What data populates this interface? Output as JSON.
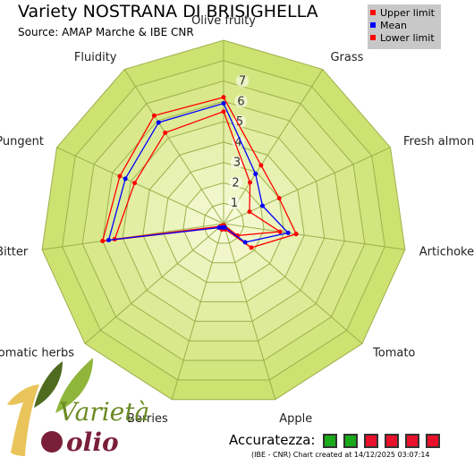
{
  "header": {
    "title": "Variety NOSTRANA DI BRISIGHELLA",
    "subtitle": "Source: AMAP Marche & IBE CNR"
  },
  "legend": {
    "items": [
      {
        "label": "Upper limit",
        "color": "#ff0000"
      },
      {
        "label": "Mean",
        "color": "#0000ff"
      },
      {
        "label": "Lower limit",
        "color": "#ff0000"
      }
    ]
  },
  "chart_data": {
    "type": "radar",
    "title": "Variety NOSTRANA DI BRISIGHELLA",
    "subtitle": "Source: AMAP Marche & IBE CNR",
    "axes": [
      "Olive fruity",
      "Grass",
      "Fresh almond",
      "Artichoke",
      "Tomato",
      "Apple",
      "Berries",
      "Aromatic herbs",
      "Bitter",
      "Pungent",
      "Fluidity"
    ],
    "scale": {
      "min": 0,
      "max": 9,
      "tick_labels": [
        "1",
        "2",
        "3",
        "4",
        "5",
        "6",
        "7"
      ]
    },
    "series": [
      {
        "name": "Upper limit",
        "color": "#ff0000",
        "values": [
          6.2,
          3.4,
          3.0,
          3.6,
          1.8,
          0.3,
          0.3,
          0.3,
          6.0,
          5.6,
          6.3
        ]
      },
      {
        "name": "Mean",
        "color": "#0000ff",
        "values": [
          5.9,
          2.9,
          2.1,
          3.2,
          1.4,
          0.2,
          0.2,
          0.3,
          5.7,
          5.3,
          5.9
        ]
      },
      {
        "name": "Lower limit",
        "color": "#ff0000",
        "values": [
          5.5,
          2.4,
          1.4,
          2.8,
          0.9,
          0.1,
          0.1,
          0.2,
          5.4,
          4.8,
          5.3
        ]
      }
    ],
    "background_color": "#dce98d",
    "grid": true
  },
  "footer": {
    "accuracy_label": "Accuratezza:",
    "accuracy_boxes": [
      "#1aaa1a",
      "#1aaa1a",
      "#e8102a",
      "#e8102a",
      "#e8102a",
      "#e8102a"
    ],
    "created": "(IBE - CNR) Chart created at 14/12/2025 03:07:14"
  },
  "logo": {
    "text_top": "Varietà",
    "text_bottom": "olio"
  }
}
